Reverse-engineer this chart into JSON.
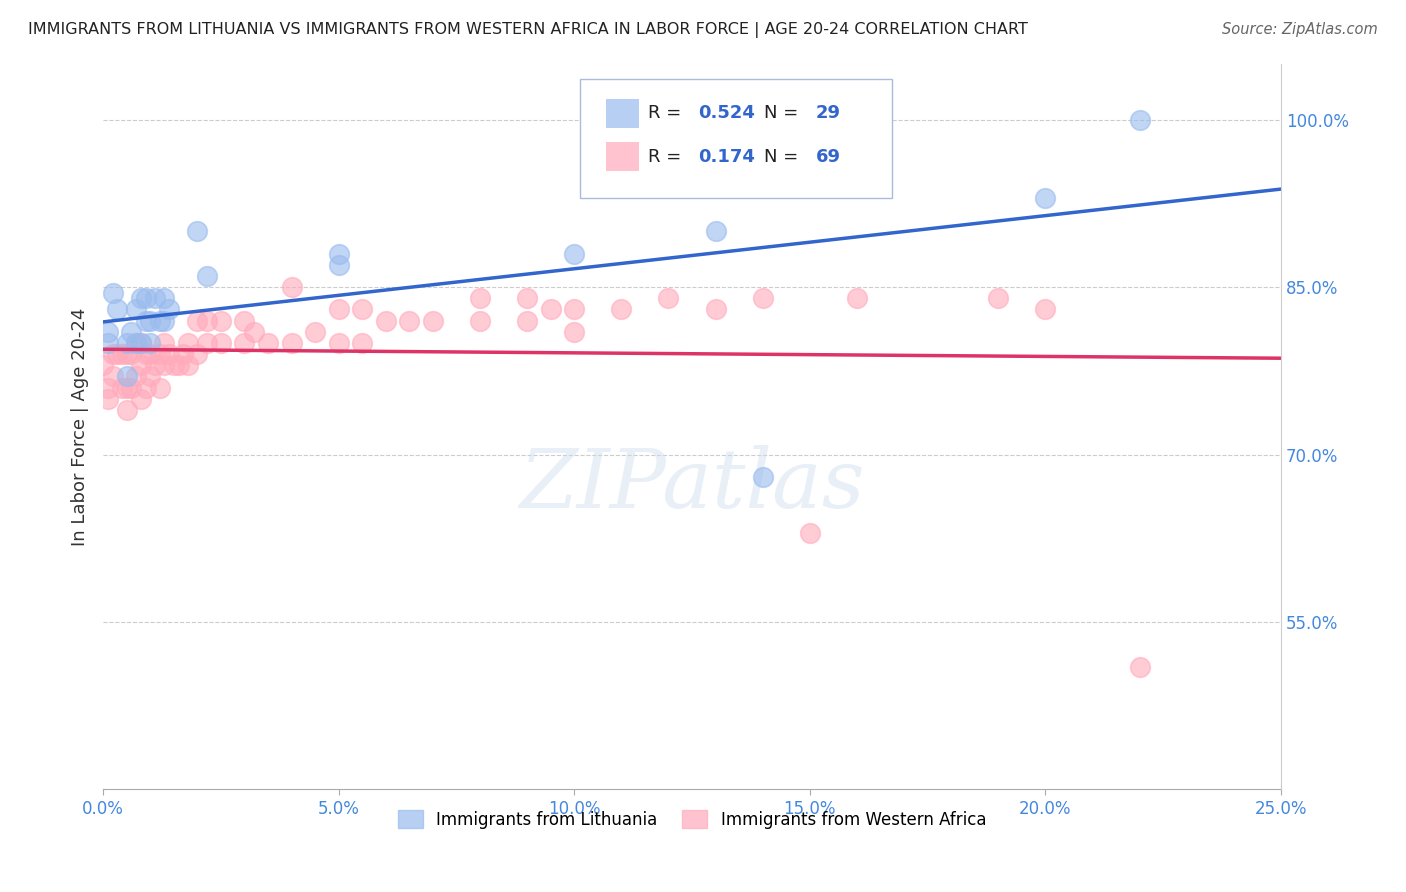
{
  "title": "IMMIGRANTS FROM LITHUANIA VS IMMIGRANTS FROM WESTERN AFRICA IN LABOR FORCE | AGE 20-24 CORRELATION CHART",
  "source": "Source: ZipAtlas.com",
  "ylabel": "In Labor Force | Age 20-24",
  "xlim": [
    0.0,
    0.25
  ],
  "ylim": [
    0.4,
    1.05
  ],
  "ytick_labels": [
    "55.0%",
    "70.0%",
    "85.0%",
    "100.0%"
  ],
  "ytick_values": [
    0.55,
    0.7,
    0.85,
    1.0
  ],
  "xtick_labels": [
    "0.0%",
    "5.0%",
    "10.0%",
    "15.0%",
    "20.0%",
    "25.0%"
  ],
  "xtick_values": [
    0.0,
    0.05,
    0.1,
    0.15,
    0.2,
    0.25
  ],
  "blue_color": "#99BBEE",
  "pink_color": "#FFAABB",
  "blue_line_color": "#3366CC",
  "pink_line_color": "#DD3366",
  "blue_R": 0.524,
  "blue_N": 29,
  "pink_R": 0.174,
  "pink_N": 69,
  "blue_scatter_x": [
    0.001,
    0.001,
    0.002,
    0.003,
    0.005,
    0.005,
    0.006,
    0.007,
    0.007,
    0.008,
    0.008,
    0.009,
    0.009,
    0.01,
    0.01,
    0.011,
    0.012,
    0.013,
    0.013,
    0.014,
    0.02,
    0.022,
    0.05,
    0.05,
    0.1,
    0.13,
    0.14,
    0.2,
    0.22
  ],
  "blue_scatter_y": [
    0.8,
    0.81,
    0.845,
    0.83,
    0.77,
    0.8,
    0.81,
    0.8,
    0.83,
    0.8,
    0.84,
    0.82,
    0.84,
    0.8,
    0.82,
    0.84,
    0.82,
    0.82,
    0.84,
    0.83,
    0.9,
    0.86,
    0.87,
    0.88,
    0.88,
    0.9,
    0.68,
    0.93,
    1.0
  ],
  "pink_scatter_x": [
    0.0,
    0.001,
    0.001,
    0.002,
    0.002,
    0.003,
    0.004,
    0.004,
    0.005,
    0.005,
    0.005,
    0.006,
    0.006,
    0.007,
    0.007,
    0.008,
    0.008,
    0.008,
    0.009,
    0.009,
    0.01,
    0.01,
    0.011,
    0.012,
    0.012,
    0.013,
    0.013,
    0.014,
    0.015,
    0.016,
    0.017,
    0.018,
    0.018,
    0.02,
    0.02,
    0.022,
    0.022,
    0.025,
    0.025,
    0.03,
    0.03,
    0.032,
    0.035,
    0.04,
    0.04,
    0.045,
    0.05,
    0.05,
    0.055,
    0.055,
    0.06,
    0.065,
    0.07,
    0.08,
    0.08,
    0.09,
    0.09,
    0.095,
    0.1,
    0.1,
    0.11,
    0.12,
    0.13,
    0.14,
    0.15,
    0.16,
    0.19,
    0.2,
    0.22
  ],
  "pink_scatter_y": [
    0.78,
    0.75,
    0.76,
    0.77,
    0.79,
    0.79,
    0.76,
    0.79,
    0.74,
    0.76,
    0.79,
    0.76,
    0.79,
    0.77,
    0.8,
    0.75,
    0.78,
    0.8,
    0.76,
    0.79,
    0.77,
    0.79,
    0.78,
    0.76,
    0.79,
    0.78,
    0.8,
    0.79,
    0.78,
    0.78,
    0.79,
    0.78,
    0.8,
    0.79,
    0.82,
    0.8,
    0.82,
    0.8,
    0.82,
    0.8,
    0.82,
    0.81,
    0.8,
    0.8,
    0.85,
    0.81,
    0.8,
    0.83,
    0.8,
    0.83,
    0.82,
    0.82,
    0.82,
    0.82,
    0.84,
    0.82,
    0.84,
    0.83,
    0.81,
    0.83,
    0.83,
    0.84,
    0.83,
    0.84,
    0.63,
    0.84,
    0.84,
    0.83,
    0.51
  ],
  "watermark": "ZIPatlas",
  "legend_labels": [
    "Immigrants from Lithuania",
    "Immigrants from Western Africa"
  ],
  "background_color": "#FFFFFF",
  "grid_color": "#CCCCCC",
  "tick_color": "#4488DD"
}
